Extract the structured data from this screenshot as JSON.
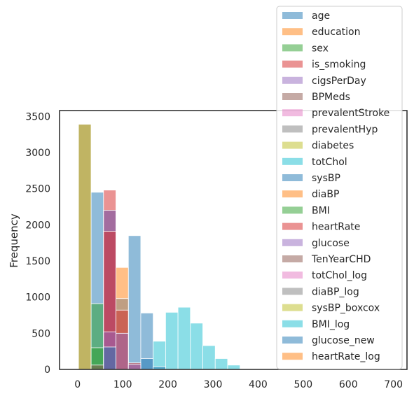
{
  "chart_data": {
    "type": "histogram",
    "xlabel": "",
    "ylabel": "Frequency",
    "xlim": [
      -40,
      730
    ],
    "ylim": [
      0,
      3580
    ],
    "x_ticks": [
      0,
      100,
      200,
      300,
      400,
      500,
      600,
      700
    ],
    "y_ticks": [
      0,
      500,
      1000,
      1500,
      2000,
      2500,
      3000,
      3500
    ],
    "grid": false,
    "legend_position": "top-right",
    "bin_width": 27.5,
    "series": [
      {
        "name": "age",
        "color": "#1f77b4",
        "bins": [
          [
            30,
            57.5,
            2450
          ],
          [
            57.5,
            85,
            2200
          ],
          [
            85,
            112.5,
            0
          ],
          [
            112.5,
            140,
            1850
          ],
          [
            140,
            167.5,
            780
          ]
        ]
      },
      {
        "name": "education",
        "color": "#ff7f0e",
        "bins": [
          [
            85,
            112.5,
            1410
          ]
        ]
      },
      {
        "name": "sex",
        "color": "#2ca02c",
        "bins": [
          [
            30,
            57.5,
            910
          ]
        ]
      },
      {
        "name": "is_smoking",
        "color": "#d62728",
        "bins": [
          [
            57.5,
            85,
            2480
          ]
        ]
      },
      {
        "name": "cigsPerDay",
        "color": "#9467bd",
        "bins": [
          [
            57.5,
            85,
            2200
          ]
        ]
      },
      {
        "name": "BPMeds",
        "color": "#8c564b",
        "bins": [
          [
            2,
            30,
            3390
          ]
        ]
      },
      {
        "name": "prevalentStroke",
        "color": "#e377c2",
        "bins": []
      },
      {
        "name": "prevalentHyp",
        "color": "#7f7f7f",
        "bins": [
          [
            85,
            112.5,
            980
          ]
        ]
      },
      {
        "name": "diabetes",
        "color": "#bcbd22",
        "bins": [
          [
            2,
            30,
            3390
          ]
        ]
      },
      {
        "name": "totChol",
        "color": "#17becf",
        "bins": [
          [
            167.5,
            195,
            390
          ],
          [
            195,
            222.5,
            790
          ],
          [
            222.5,
            250,
            860
          ],
          [
            250,
            277.5,
            640
          ],
          [
            277.5,
            305,
            330
          ],
          [
            305,
            332.5,
            150
          ],
          [
            332.5,
            360,
            60
          ]
        ]
      },
      {
        "name": "sysBP",
        "color": "#1f77b4",
        "bins": [
          [
            140,
            167.5,
            150
          ],
          [
            167.5,
            195,
            40
          ]
        ]
      },
      {
        "name": "diaBP",
        "color": "#ff7f0e",
        "bins": []
      },
      {
        "name": "BMI",
        "color": "#2ca02c",
        "bins": [
          [
            30,
            57.5,
            300
          ]
        ]
      },
      {
        "name": "heartRate",
        "color": "#d62728",
        "bins": [
          [
            57.5,
            85,
            1910
          ],
          [
            85,
            112.5,
            820
          ],
          [
            112.5,
            140,
            90
          ]
        ]
      },
      {
        "name": "glucose",
        "color": "#9467bd",
        "bins": [
          [
            57.5,
            85,
            520
          ],
          [
            85,
            112.5,
            500
          ],
          [
            112.5,
            140,
            70
          ]
        ]
      },
      {
        "name": "TenYearCHD",
        "color": "#8c564b",
        "bins": [
          [
            30,
            57.5,
            60
          ]
        ]
      },
      {
        "name": "totChol_log",
        "color": "#e377c2",
        "bins": []
      },
      {
        "name": "diaBP_log",
        "color": "#7f7f7f",
        "bins": []
      },
      {
        "name": "sysBP_boxcox",
        "color": "#bcbd22",
        "bins": []
      },
      {
        "name": "BMI_log",
        "color": "#17becf",
        "bins": []
      },
      {
        "name": "glucose_new",
        "color": "#1f77b4",
        "bins": [
          [
            57.5,
            85,
            310
          ]
        ]
      },
      {
        "name": "heartRate_log",
        "color": "#ff7f0e",
        "bins": []
      }
    ]
  }
}
